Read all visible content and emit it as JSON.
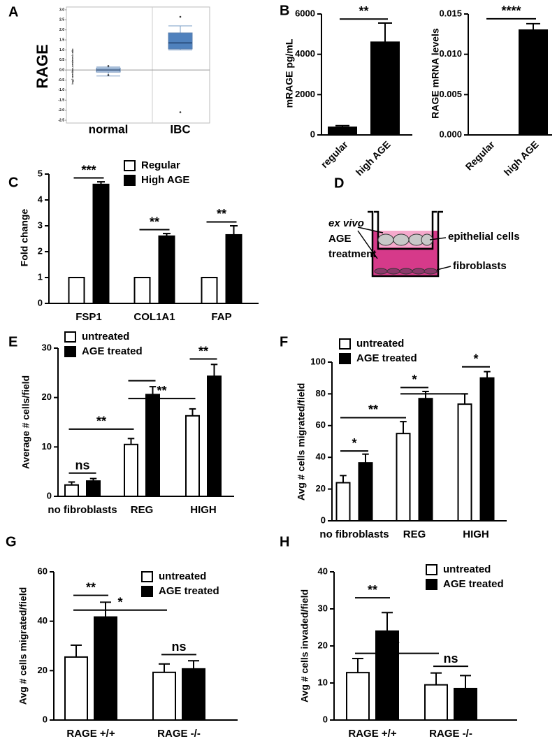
{
  "chart_data": [
    {
      "panel": "A",
      "type": "box",
      "title": "RAGE",
      "y_label": "log2 median-centered ratio",
      "categories": [
        "normal",
        "IBC"
      ],
      "boxes": [
        {
          "min": -0.3,
          "q1": -0.1,
          "median": 0.0,
          "q3": 0.1,
          "max": 0.15,
          "outliers": [
            0.2,
            -0.25
          ]
        },
        {
          "min": 1.0,
          "q1": 1.05,
          "median": 1.35,
          "q3": 1.85,
          "max": 2.2,
          "outliers": [
            2.65,
            -2.1
          ]
        }
      ],
      "colors": [
        "#c6d9f0",
        "#4f81bd"
      ],
      "ylim": [
        -2.5,
        3.0
      ],
      "yticks": [
        {
          "value": 3,
          "label": "3.0"
        },
        2.5,
        {
          "value": 2,
          "label": "2.0"
        },
        1.5,
        {
          "value": 1,
          "label": "1.0"
        },
        0.5,
        {
          "value": 0,
          "label": "0.0"
        },
        -0.5,
        {
          "value": -1,
          "label": "-1.0"
        },
        -1.5,
        {
          "value": -2,
          "label": "-2.0"
        },
        -2.5
      ]
    },
    {
      "panel": "B",
      "type": "bar",
      "y_label": "mRAGE pg/mL",
      "categories": [
        "regular",
        "high AGE"
      ],
      "series": [
        {
          "color": "#000000",
          "values": [
            380,
            4600
          ],
          "errors": [
            80,
            950
          ]
        }
      ],
      "ylim": [
        0,
        6000
      ],
      "yticks": [
        0,
        2000,
        4000,
        6000
      ],
      "annotations": [
        "**"
      ]
    },
    {
      "type": "bar",
      "y_label": "RAGE mRNA levels",
      "categories": [
        "Regular",
        "high AGE"
      ],
      "series": [
        {
          "color": "#000000",
          "values": [
            0,
            0.013
          ],
          "errors": [
            0,
            0.0008
          ]
        }
      ],
      "ylim": [
        0,
        0.015
      ],
      "yticks": [
        {
          "value": 0,
          "label": "0.000"
        },
        0.005,
        {
          "value": 0.01,
          "label": "0.010"
        },
        0.015
      ],
      "annotations": [
        "****"
      ]
    },
    {
      "panel": "C",
      "type": "bar",
      "y_label": "Fold change",
      "categories": [
        "FSP1",
        "COL1A1",
        "FAP"
      ],
      "series": [
        {
          "name": "Regular",
          "color": "#ffffff",
          "values": [
            1,
            1,
            1
          ],
          "errors": [
            0,
            0,
            0
          ]
        },
        {
          "name": "High AGE",
          "color": "#000000",
          "values": [
            4.6,
            2.6,
            2.65
          ],
          "errors": [
            0.1,
            0.1,
            0.35
          ]
        }
      ],
      "ylim": [
        0,
        5
      ],
      "yticks": [
        0,
        1,
        2,
        3,
        4,
        5
      ],
      "annotations": [
        "***",
        "**",
        "**"
      ]
    },
    {
      "panel": "E",
      "type": "bar",
      "y_label": "Average # cells/field",
      "categories": [
        "no fibroblasts",
        "REG",
        "HIGH"
      ],
      "series": [
        {
          "name": "untreated",
          "color": "#ffffff",
          "values": [
            2.3,
            10.5,
            16.3
          ],
          "errors": [
            0.6,
            1.2,
            1.4
          ]
        },
        {
          "name": "AGE treated",
          "color": "#000000",
          "values": [
            3.1,
            20.6,
            24.3
          ],
          "errors": [
            0.5,
            1.6,
            2.4
          ]
        }
      ],
      "ylim": [
        0,
        30
      ],
      "yticks": [
        0,
        10,
        20,
        30
      ],
      "annotations": [
        "ns",
        "**",
        "**",
        "**"
      ]
    },
    {
      "panel": "F",
      "type": "bar",
      "y_label": "Avg # cells migrated/field",
      "categories": [
        "no fibroblasts",
        "REG",
        "HIGH"
      ],
      "series": [
        {
          "name": "untreated",
          "color": "#ffffff",
          "values": [
            24,
            55,
            73.5
          ],
          "errors": [
            4.5,
            7.5,
            6.5
          ]
        },
        {
          "name": "AGE treated",
          "color": "#000000",
          "values": [
            36.5,
            77,
            90
          ],
          "errors": [
            5.5,
            4.5,
            4
          ]
        }
      ],
      "ylim": [
        0,
        100
      ],
      "yticks": [
        0,
        20,
        40,
        60,
        80,
        100
      ],
      "annotations": [
        "*",
        "**",
        "*",
        "*"
      ]
    },
    {
      "panel": "G",
      "type": "bar",
      "y_label": "Avg # cells migrated/field",
      "categories": [
        "RAGE +/+",
        "RAGE -/-"
      ],
      "series": [
        {
          "name": "untreated",
          "color": "#ffffff",
          "values": [
            25.5,
            19.3
          ],
          "errors": [
            4.8,
            3.4
          ]
        },
        {
          "name": "AGE treated",
          "color": "#000000",
          "values": [
            41.7,
            20.7
          ],
          "errors": [
            6,
            3.3
          ]
        }
      ],
      "ylim": [
        0,
        60
      ],
      "yticks": [
        0,
        20,
        40,
        60
      ],
      "annotations": [
        "**",
        "*",
        "ns"
      ]
    },
    {
      "panel": "H",
      "type": "bar",
      "y_label": "Avg # cells invaded/field",
      "categories": [
        "RAGE +/+",
        "RAGE -/-"
      ],
      "series": [
        {
          "name": "untreated",
          "color": "#ffffff",
          "values": [
            12.8,
            9.5
          ],
          "errors": [
            3.8,
            3.2
          ]
        },
        {
          "name": "AGE treated",
          "color": "#000000",
          "values": [
            24,
            8.5
          ],
          "errors": [
            5,
            3.5
          ]
        }
      ],
      "ylim": [
        0,
        40
      ],
      "yticks": [
        0,
        10,
        20,
        30,
        40
      ],
      "annotations": [
        "**",
        "*",
        "ns"
      ]
    }
  ],
  "diagram": {
    "panel": "D",
    "treatment_lines": [
      "ex vivo",
      "AGE",
      "treatment"
    ],
    "top_label": "epithelial cells",
    "bottom_label": "fibroblasts"
  }
}
